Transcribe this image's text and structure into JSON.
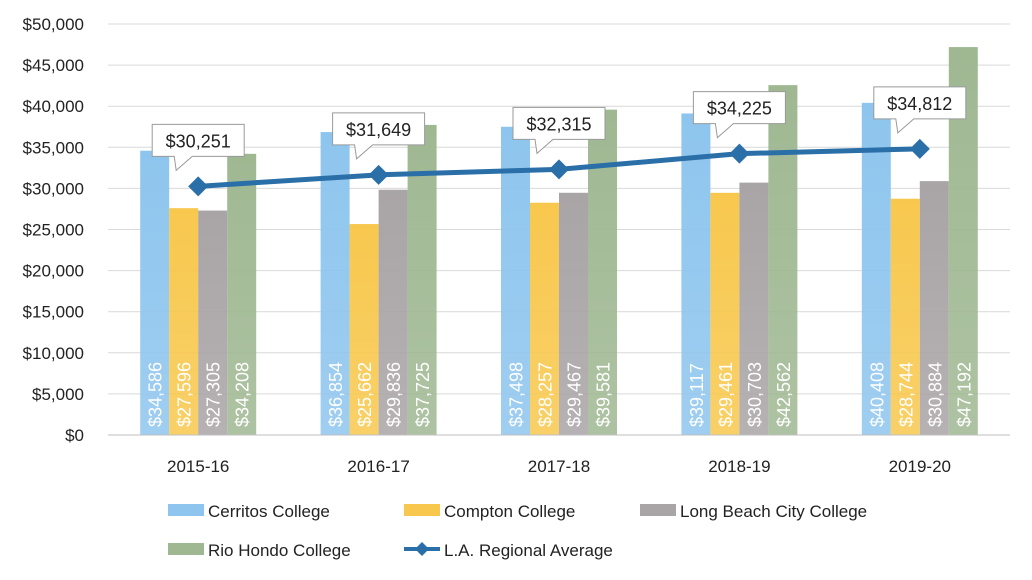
{
  "chart_data": {
    "type": "bar",
    "categories": [
      "2015-16",
      "2016-17",
      "2017-18",
      "2018-19",
      "2019-20"
    ],
    "series": [
      {
        "name": "Cerritos College",
        "values": [
          34586,
          36854,
          37498,
          39117,
          40408
        ],
        "color": "#8EC5EE",
        "labels": [
          "$34,586",
          "$36,854",
          "$37,498",
          "$39,117",
          "$40,408"
        ]
      },
      {
        "name": "Compton College",
        "values": [
          27596,
          25662,
          28257,
          29461,
          28744
        ],
        "color": "#F8C84E",
        "labels": [
          "$27,596",
          "$25,662",
          "$28,257",
          "$29,461",
          "$28,744"
        ]
      },
      {
        "name": "Long Beach City College",
        "values": [
          27305,
          29836,
          29467,
          30703,
          30884
        ],
        "color": "#A9A4A6",
        "labels": [
          "$27,305",
          "$29,836",
          "$29,467",
          "$30,703",
          "$30,884"
        ]
      },
      {
        "name": "Rio Hondo College",
        "values": [
          34208,
          37725,
          39581,
          42562,
          47192
        ],
        "color": "#9FB892",
        "labels": [
          "$34,208",
          "$37,725",
          "$39,581",
          "$42,562",
          "$47,192"
        ]
      }
    ],
    "line_series": {
      "name": "L.A. Regional Average",
      "values": [
        30251,
        31649,
        32315,
        34225,
        34812
      ],
      "labels": [
        "$30,251",
        "$31,649",
        "$32,315",
        "$34,225",
        "$34,812"
      ],
      "color": "#2A6FA8"
    },
    "yticks": [
      "$0",
      "$5,000",
      "$10,000",
      "$15,000",
      "$20,000",
      "$25,000",
      "$30,000",
      "$35,000",
      "$40,000",
      "$45,000",
      "$50,000"
    ],
    "ylim": [
      0,
      50000
    ],
    "legend": [
      "Cerritos College",
      "Compton College",
      "Long Beach City College",
      "Rio Hondo College",
      "L.A. Regional Average"
    ],
    "title": "",
    "xlabel": "",
    "ylabel": ""
  }
}
